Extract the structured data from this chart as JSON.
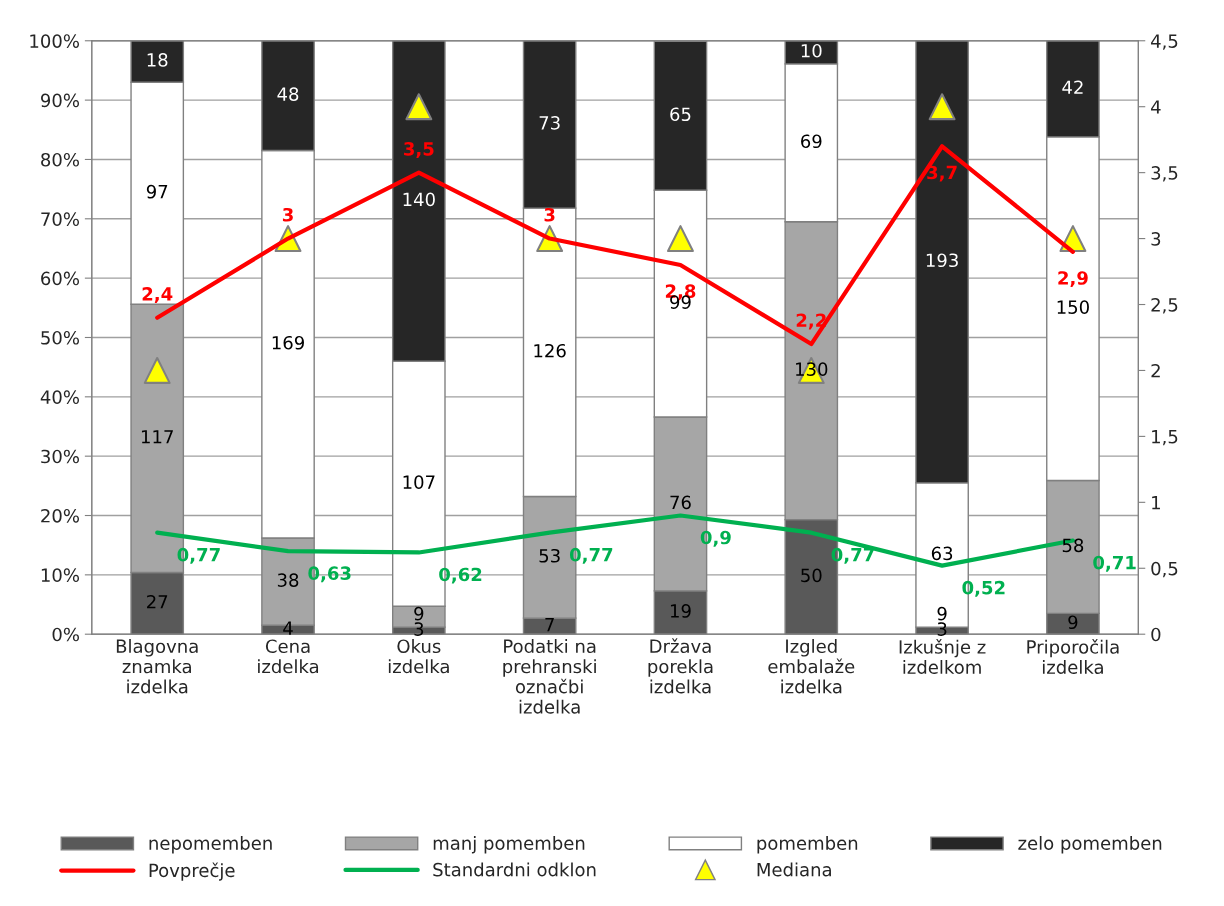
{
  "chart_data": {
    "type": "bar",
    "stacked": true,
    "categories": [
      "Blagovna znamka izdelka",
      "Cena izdelka",
      "Okus izdelka",
      "Podatki na prehranski označbi izdelka",
      "Država porekla izdelka",
      "Izgled embalaže izdelka",
      "Izkušnje z izdelkom",
      "Priporočila izdelka"
    ],
    "series": [
      {
        "name": "nepomemben",
        "color": "#595959",
        "values": [
          10.4,
          1.5,
          1.2,
          2.7,
          7.3,
          19.3,
          1.2,
          3.5
        ]
      },
      {
        "name": "manj pomemben",
        "color": "#a6a6a6",
        "values": [
          45.2,
          14.7,
          3.5,
          20.5,
          29.3,
          50.2,
          0.0,
          22.4
        ]
      },
      {
        "name": "pomemben",
        "color": "#ffffff",
        "values": [
          37.4,
          65.3,
          41.3,
          48.6,
          38.2,
          26.6,
          24.3,
          57.9
        ]
      },
      {
        "name": "zelo pomemben",
        "color": "#262626",
        "values": [
          7.0,
          18.5,
          54.0,
          28.2,
          25.1,
          3.9,
          74.5,
          16.2
        ]
      },
      {
        "name": "Povprečje",
        "type": "line",
        "axis": "y2",
        "color": "#ff0000",
        "values": [
          2.4,
          3,
          3.5,
          3,
          2.8,
          2.2,
          3.7,
          2.9
        ],
        "value_labels": [
          "2,4",
          "3",
          "3,5",
          "3",
          "2,8",
          "2,2",
          "3,7",
          "2,9"
        ]
      },
      {
        "name": "Standardni odklon",
        "type": "line",
        "axis": "y2",
        "color": "#00b050",
        "values": [
          0.77,
          0.63,
          0.62,
          0.77,
          0.9,
          0.77,
          0.52,
          0.71
        ],
        "value_labels": [
          "0,77",
          "0,63",
          "0,62",
          "0,77",
          "0,9",
          "0,77",
          "0,52",
          "0,71"
        ]
      },
      {
        "name": "Mediana",
        "type": "scatter",
        "axis": "y2",
        "marker": "triangle",
        "color": "#ffff00",
        "values": [
          2,
          3,
          4,
          3,
          3,
          2,
          4,
          3
        ]
      }
    ],
    "annotations": [
      "27",
      "117",
      "97",
      "18",
      "4",
      "38",
      "169",
      "48",
      "3",
      "9",
      "107",
      "140",
      "7",
      "53",
      "126",
      "73",
      "19",
      "76",
      "99",
      "65",
      "50",
      "130",
      "69",
      "10",
      "3",
      "9",
      "63",
      "193",
      "9",
      "58",
      "150",
      "42"
    ],
    "ylim": [
      0,
      100
    ],
    "yticks": [
      {
        "value": 0,
        "label": "0%"
      },
      {
        "value": 10,
        "label": "10%"
      },
      {
        "value": 20,
        "label": "20%"
      },
      {
        "value": 30,
        "label": "30%"
      },
      {
        "value": 40,
        "label": "40%"
      },
      {
        "value": 50,
        "label": "50%"
      },
      {
        "value": 60,
        "label": "60%"
      },
      {
        "value": 70,
        "label": "70%"
      },
      {
        "value": 80,
        "label": "80%"
      },
      {
        "value": 90,
        "label": "90%"
      },
      {
        "value": 100,
        "label": "100%"
      }
    ],
    "y2lim": [
      0,
      4.5
    ],
    "y2ticks": [
      0,
      {
        "value": 0.5,
        "label": "0,5"
      },
      1,
      {
        "value": 1.5,
        "label": "1,5"
      },
      2,
      {
        "value": 2.5,
        "label": "2,5"
      },
      3,
      {
        "value": 3.5,
        "label": "3,5"
      },
      4,
      {
        "value": 4.5,
        "label": "4,5"
      }
    ],
    "grid": "y",
    "legend": "bottom"
  }
}
